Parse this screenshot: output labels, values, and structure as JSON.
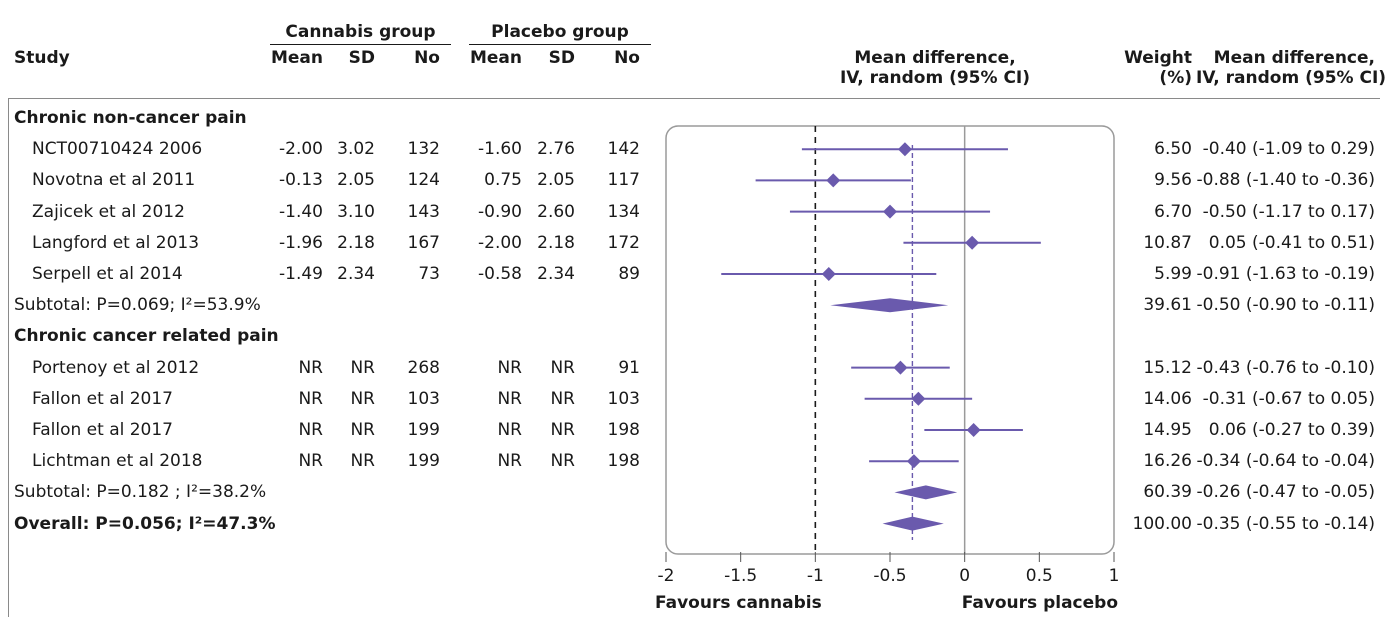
{
  "header": {
    "study": "Study",
    "cannabis_group": "Cannabis group",
    "placebo_group": "Placebo group",
    "mean": "Mean",
    "sd": "SD",
    "no": "No",
    "plot_header_line1": "Mean difference,",
    "plot_header_line2": "IV, random (95% CI)",
    "weight_line1": "Weight",
    "weight_line2": "(%)",
    "md_line1": "Mean difference,",
    "md_line2": "IV, random (95% CI)"
  },
  "rows": [
    {
      "label": "Chronic non-cancer pain",
      "kind": "section"
    },
    {
      "label": "NCT00710424 2006",
      "kind": "study",
      "c_mean": "-2.00",
      "c_sd": "3.02",
      "c_no": "132",
      "p_mean": "-1.60",
      "p_sd": "2.76",
      "p_no": "142",
      "weight": "6.50",
      "ci": "-0.40 (-1.09 to 0.29)"
    },
    {
      "label": "Novotna et al 2011",
      "kind": "study",
      "c_mean": "-0.13",
      "c_sd": "2.05",
      "c_no": "124",
      "p_mean": "0.75",
      "p_sd": "2.05",
      "p_no": "117",
      "weight": "9.56",
      "ci": "-0.88 (-1.40 to -0.36)"
    },
    {
      "label": "Zajicek et al 2012",
      "kind": "study",
      "c_mean": "-1.40",
      "c_sd": "3.10",
      "c_no": "143",
      "p_mean": "-0.90",
      "p_sd": "2.60",
      "p_no": "134",
      "weight": "6.70",
      "ci": "-0.50 (-1.17 to 0.17)"
    },
    {
      "label": "Langford et al 2013",
      "kind": "study",
      "c_mean": "-1.96",
      "c_sd": "2.18",
      "c_no": "167",
      "p_mean": "-2.00",
      "p_sd": "2.18",
      "p_no": "172",
      "weight": "10.87",
      "ci": "0.05 (-0.41 to 0.51)"
    },
    {
      "label": "Serpell et al 2014",
      "kind": "study",
      "c_mean": "-1.49",
      "c_sd": "2.34",
      "c_no": "73",
      "p_mean": "-0.58",
      "p_sd": "2.34",
      "p_no": "89",
      "weight": "5.99",
      "ci": "-0.91 (-1.63 to -0.19)"
    },
    {
      "label": "Subtotal: P=0.069; I²=53.9%",
      "kind": "subtotal",
      "weight": "39.61",
      "ci": "-0.50 (-0.90 to -0.11)"
    },
    {
      "label": "Chronic cancer related pain",
      "kind": "section"
    },
    {
      "label": "Portenoy et al 2012",
      "kind": "study",
      "c_mean": "NR",
      "c_sd": "NR",
      "c_no": "268",
      "p_mean": "NR",
      "p_sd": "NR",
      "p_no": "91",
      "weight": "15.12",
      "ci": "-0.43 (-0.76 to -0.10)"
    },
    {
      "label": "Fallon et al 2017",
      "kind": "study",
      "c_mean": "NR",
      "c_sd": "NR",
      "c_no": "103",
      "p_mean": "NR",
      "p_sd": "NR",
      "p_no": "103",
      "weight": "14.06",
      "ci": "-0.31 (-0.67 to 0.05)"
    },
    {
      "label": "Fallon et al 2017",
      "kind": "study",
      "c_mean": "NR",
      "c_sd": "NR",
      "c_no": "199",
      "p_mean": "NR",
      "p_sd": "NR",
      "p_no": "198",
      "weight": "14.95",
      "ci": "0.06 (-0.27 to 0.39)"
    },
    {
      "label": "Lichtman et al 2018",
      "kind": "study",
      "c_mean": "NR",
      "c_sd": "NR",
      "c_no": "199",
      "p_mean": "NR",
      "p_sd": "NR",
      "p_no": "198",
      "weight": "16.26",
      "ci": "-0.34 (-0.64 to -0.04)"
    },
    {
      "label": "Subtotal: P=0.182 ; I²=38.2%",
      "kind": "subtotal",
      "weight": "60.39",
      "ci": "-0.26 (-0.47 to -0.05)"
    },
    {
      "label": "Overall: P=0.056; I²=47.3%",
      "kind": "overall",
      "weight": "100.00",
      "ci": "-0.35 (-0.55 to -0.14)"
    }
  ],
  "chart_data": {
    "type": "forest",
    "xlim": [
      -2,
      1
    ],
    "ticks": [
      "-2",
      "-1.5",
      "-1",
      "-0.5",
      "0",
      "0.5",
      "1"
    ],
    "tick_values": [
      -2,
      -1.5,
      -1,
      -0.5,
      0,
      0.5,
      1
    ],
    "null_line": 0,
    "reference_line": -1,
    "pooled_line": -0.35,
    "left_label": "Favours cannabis",
    "right_label": "Favours placebo",
    "estimates": [
      {
        "row": 1,
        "kind": "point",
        "est": -0.4,
        "lo": -1.09,
        "hi": 0.29
      },
      {
        "row": 2,
        "kind": "point",
        "est": -0.88,
        "lo": -1.4,
        "hi": -0.36
      },
      {
        "row": 3,
        "kind": "point",
        "est": -0.5,
        "lo": -1.17,
        "hi": 0.17
      },
      {
        "row": 4,
        "kind": "point",
        "est": 0.05,
        "lo": -0.41,
        "hi": 0.51
      },
      {
        "row": 5,
        "kind": "point",
        "est": -0.91,
        "lo": -1.63,
        "hi": -0.19
      },
      {
        "row": 6,
        "kind": "diamond",
        "est": -0.5,
        "lo": -0.9,
        "hi": -0.11
      },
      {
        "row": 8,
        "kind": "point",
        "est": -0.43,
        "lo": -0.76,
        "hi": -0.1
      },
      {
        "row": 9,
        "kind": "point",
        "est": -0.31,
        "lo": -0.67,
        "hi": 0.05
      },
      {
        "row": 10,
        "kind": "point",
        "est": 0.06,
        "lo": -0.27,
        "hi": 0.39
      },
      {
        "row": 11,
        "kind": "point",
        "est": -0.34,
        "lo": -0.64,
        "hi": -0.04
      },
      {
        "row": 12,
        "kind": "diamond",
        "est": -0.26,
        "lo": -0.47,
        "hi": -0.05
      },
      {
        "row": 13,
        "kind": "diamond",
        "est": -0.35,
        "lo": -0.55,
        "hi": -0.14
      }
    ],
    "colors": {
      "marker": "#6a5aad",
      "text": "#1a1a1a",
      "axis": "#555555",
      "box": "#9a9a9a"
    }
  }
}
